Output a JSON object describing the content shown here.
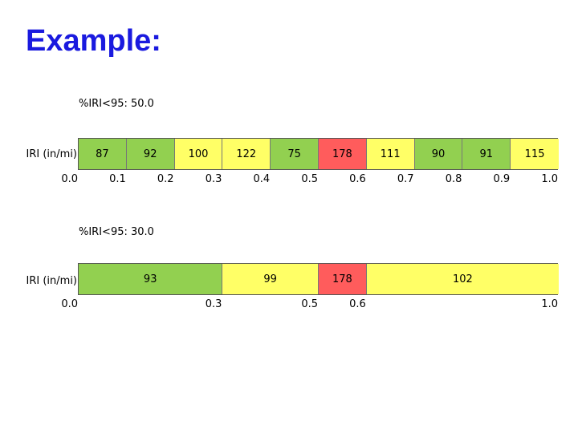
{
  "title": "Example:",
  "colors": {
    "green": "#92d050",
    "yellow": "#ffff66",
    "red": "#ff5c5c",
    "title": "#1a1adf"
  },
  "sections": [
    {
      "pct_label": "%IRI<95: 50.0",
      "row_label": "IRI (in/mi)",
      "segments": [
        {
          "value": "87",
          "start": 0.0,
          "end": 0.1,
          "color": "green"
        },
        {
          "value": "92",
          "start": 0.1,
          "end": 0.2,
          "color": "green"
        },
        {
          "value": "100",
          "start": 0.2,
          "end": 0.3,
          "color": "yellow"
        },
        {
          "value": "122",
          "start": 0.3,
          "end": 0.4,
          "color": "yellow"
        },
        {
          "value": "75",
          "start": 0.4,
          "end": 0.5,
          "color": "green"
        },
        {
          "value": "178",
          "start": 0.5,
          "end": 0.6,
          "color": "red"
        },
        {
          "value": "111",
          "start": 0.6,
          "end": 0.7,
          "color": "yellow"
        },
        {
          "value": "90",
          "start": 0.7,
          "end": 0.8,
          "color": "green"
        },
        {
          "value": "91",
          "start": 0.8,
          "end": 0.9,
          "color": "green"
        },
        {
          "value": "115",
          "start": 0.9,
          "end": 1.0,
          "color": "yellow"
        }
      ],
      "ticks": [
        "0.0",
        "0.1",
        "0.2",
        "0.3",
        "0.4",
        "0.5",
        "0.6",
        "0.7",
        "0.8",
        "0.9",
        "1.0"
      ]
    },
    {
      "pct_label": "%IRI<95: 30.0",
      "row_label": "IRI (in/mi)",
      "segments": [
        {
          "value": "93",
          "start": 0.0,
          "end": 0.3,
          "color": "green"
        },
        {
          "value": "99",
          "start": 0.3,
          "end": 0.5,
          "color": "yellow"
        },
        {
          "value": "178",
          "start": 0.5,
          "end": 0.6,
          "color": "red"
        },
        {
          "value": "102",
          "start": 0.6,
          "end": 1.0,
          "color": "yellow"
        }
      ],
      "ticks": [
        "0.0",
        "0.3",
        "0.5",
        "0.6",
        "1.0"
      ]
    }
  ]
}
